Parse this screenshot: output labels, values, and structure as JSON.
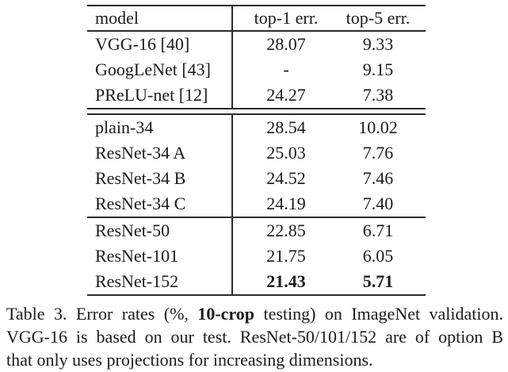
{
  "page": {
    "background_color": "#ffffff",
    "text_color": "#1b1b1b",
    "rule_color": "#2b2b2b"
  },
  "table": {
    "header": {
      "model": "model",
      "top1": "top-1 err.",
      "top5": "top-5 err."
    },
    "groups": [
      {
        "rows": [
          {
            "model": "VGG-16 [40]",
            "top1": "28.07",
            "top5": "9.33"
          },
          {
            "model": "GoogLeNet [43]",
            "top1": "-",
            "top5": "9.15"
          },
          {
            "model": "PReLU-net [12]",
            "top1": "24.27",
            "top5": "7.38"
          }
        ]
      },
      {
        "rows": [
          {
            "model": "plain-34",
            "top1": "28.54",
            "top5": "10.02"
          },
          {
            "model": "ResNet-34 A",
            "top1": "25.03",
            "top5": "7.76"
          },
          {
            "model": "ResNet-34 B",
            "top1": "24.52",
            "top5": "7.46"
          },
          {
            "model": "ResNet-34 C",
            "top1": "24.19",
            "top5": "7.40"
          }
        ]
      },
      {
        "rows": [
          {
            "model": "ResNet-50",
            "top1": "22.85",
            "top5": "6.71"
          },
          {
            "model": "ResNet-101",
            "top1": "21.75",
            "top5": "6.05"
          },
          {
            "model": "ResNet-152",
            "top1": "21.43",
            "top5": "5.71",
            "values_bold": true
          }
        ]
      }
    ]
  },
  "caption": {
    "line1_prefix": "Table 3. Error rates (%, ",
    "line1_bold": "10-crop",
    "line1_suffix": " testing) on ImageNet validation.",
    "line2": "VGG-16 is based on our test. ResNet-50/101/152 are of option B",
    "line3": "that only uses projections for increasing dimensions."
  },
  "chart_data": {
    "type": "table",
    "title": "Table 3. Error rates (%, 10-crop testing) on ImageNet validation.",
    "columns": [
      "model",
      "top-1 err.",
      "top-5 err."
    ],
    "rows": [
      [
        "VGG-16 [40]",
        "28.07",
        "9.33"
      ],
      [
        "GoogLeNet [43]",
        "-",
        "9.15"
      ],
      [
        "PReLU-net [12]",
        "24.27",
        "7.38"
      ],
      [
        "plain-34",
        "28.54",
        "10.02"
      ],
      [
        "ResNet-34 A",
        "25.03",
        "7.76"
      ],
      [
        "ResNet-34 B",
        "24.52",
        "7.46"
      ],
      [
        "ResNet-34 C",
        "24.19",
        "7.40"
      ],
      [
        "ResNet-50",
        "22.85",
        "6.71"
      ],
      [
        "ResNet-101",
        "21.75",
        "6.05"
      ],
      [
        "ResNet-152",
        "21.43",
        "5.71"
      ]
    ],
    "group_boundaries_after_rows": [
      2,
      6
    ],
    "bold_cells": [
      [
        9,
        1
      ],
      [
        9,
        2
      ]
    ]
  }
}
